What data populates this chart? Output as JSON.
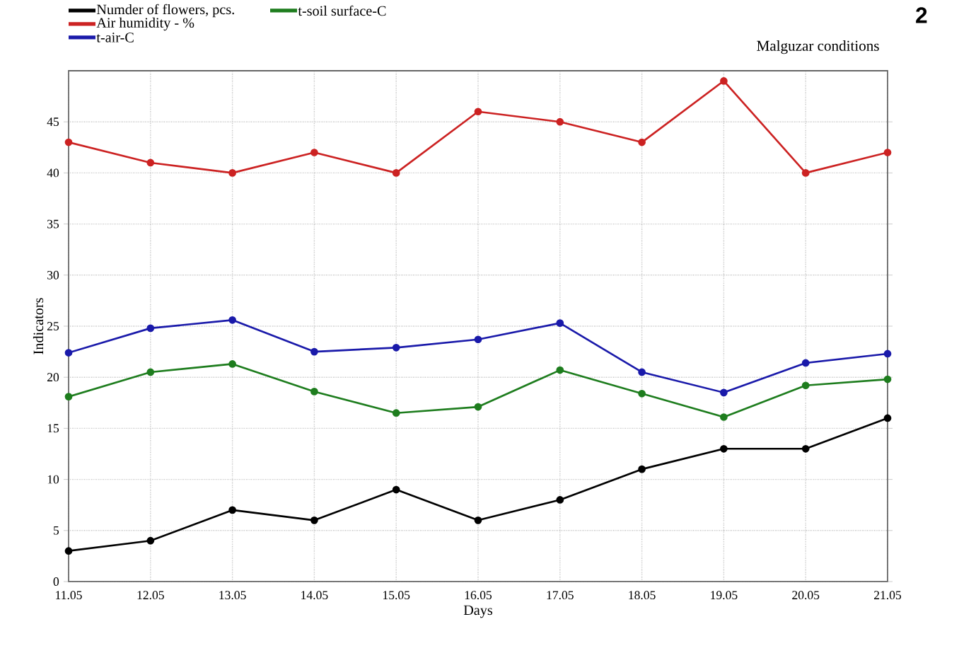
{
  "chart_data": {
    "type": "line",
    "title": "Malguzar conditions",
    "xlabel": "Days",
    "ylabel": "Indicators",
    "annotations": [
      "2"
    ],
    "categories": [
      "11.05",
      "12.05",
      "13.05",
      "14.05",
      "15.05",
      "16.05",
      "17.05",
      "18.05",
      "19.05",
      "20.05",
      "21.05"
    ],
    "series": [
      {
        "name": "Numder of flowers, pcs.",
        "color": "#000000",
        "values": [
          3,
          4,
          7,
          6,
          9,
          6,
          8,
          11,
          13,
          13,
          16
        ]
      },
      {
        "name": "Air humidity - %",
        "color": "#cc2222",
        "values": [
          43,
          41,
          40,
          42,
          40,
          46,
          45,
          43,
          49,
          40,
          42
        ]
      },
      {
        "name": "t-air-C",
        "color": "#1a1aaa",
        "values": [
          22.4,
          24.8,
          25.6,
          22.5,
          22.9,
          23.7,
          25.3,
          20.5,
          18.5,
          21.4,
          22.3
        ]
      },
      {
        "name": "t-soil surface-C",
        "color": "#1e7d1e",
        "values": [
          18.1,
          20.5,
          21.3,
          18.6,
          16.5,
          17.1,
          20.7,
          18.4,
          16.1,
          19.2,
          19.8
        ]
      }
    ],
    "ylim": [
      0,
      50
    ],
    "yticks": [
      0,
      5,
      10,
      15,
      20,
      25,
      30,
      35,
      40,
      45
    ],
    "grid": true,
    "legend": "top left",
    "marker": "circle",
    "line_style": "solid"
  }
}
